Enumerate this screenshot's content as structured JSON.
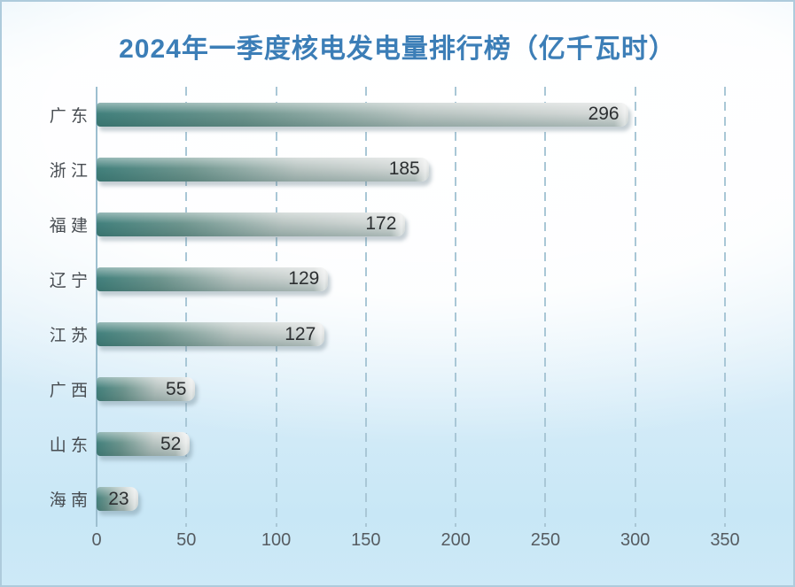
{
  "chart_data": {
    "type": "bar",
    "orientation": "horizontal",
    "title": "2024年一季度核电发电量排行榜（亿千瓦时）",
    "unit": "亿千瓦时",
    "categories": [
      "广 东",
      "浙 江",
      "福 建",
      "辽 宁",
      "江 苏",
      "广 西",
      "山 东",
      "海 南"
    ],
    "values": [
      296,
      185,
      172,
      129,
      127,
      55,
      52,
      23
    ],
    "xlim": [
      0,
      350
    ],
    "x_ticks": [
      0,
      50,
      100,
      150,
      200,
      250,
      300,
      350
    ],
    "grid": "dashed-vertical",
    "legend": "none",
    "colors": {
      "title": "#3c7eb7",
      "bar_teal": "#41807c",
      "bar_gray": "#d9dcdb",
      "gridline": "#a9c7d6",
      "axis_line": "#9dbfd0",
      "value_text": "#2c2f31",
      "category_text": "#474c51",
      "tick_text": "#565c61",
      "background_blue": "#c8e7f6"
    }
  }
}
